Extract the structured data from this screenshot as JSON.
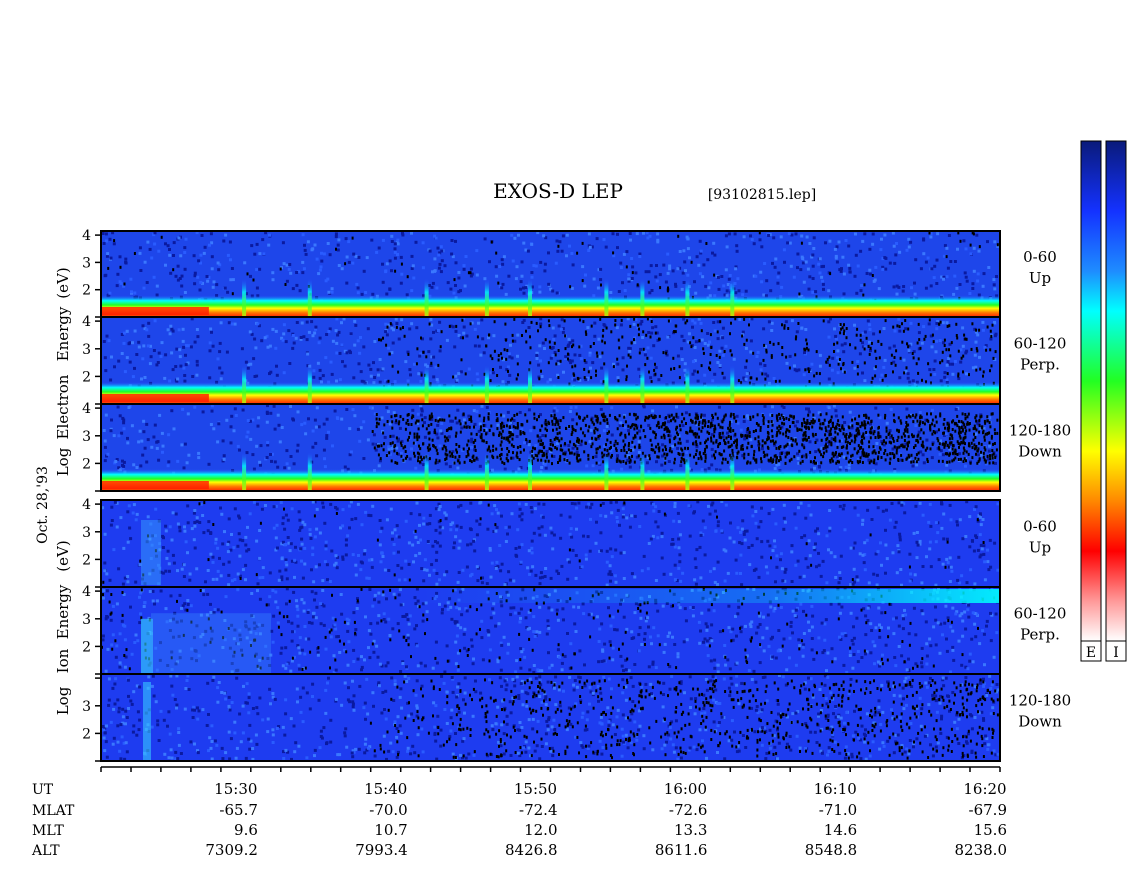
{
  "chart_data": {
    "type": "heatmap",
    "title": "EXOS-D LEP",
    "subtitle": "[93102815.lep]",
    "date_label": "Oct. 28,'93",
    "colorbar_labels": [
      "E",
      "I"
    ],
    "colorbar_stops": [
      "#0a1a8c",
      "#1a3cff",
      "#1e8cff",
      "#00ffff",
      "#33ff33",
      "#ffff00",
      "#ff8800",
      "#ff0000",
      "#ffffff"
    ],
    "time_axis": {
      "label": "UT",
      "ticks": [
        "15:30",
        "15:40",
        "15:50",
        "16:00",
        "16:10",
        "16:20"
      ],
      "range": [
        "15:21",
        "16:21"
      ]
    },
    "ephemeris": [
      {
        "name": "MLAT",
        "values": [
          "-65.7",
          "-70.0",
          "-72.4",
          "-72.6",
          "-71.0",
          "-67.9"
        ]
      },
      {
        "name": "MLT",
        "values": [
          "9.6",
          "10.7",
          "12.0",
          "13.3",
          "14.6",
          "15.6"
        ]
      },
      {
        "name": "ALT",
        "values": [
          "7309.2",
          "7993.4",
          "8426.8",
          "8611.6",
          "8548.8",
          "8238.0"
        ]
      }
    ],
    "groups": [
      {
        "species": "Electron",
        "ylabel_words": [
          "Log",
          "Electron",
          "Energy",
          "(eV)"
        ]
      },
      {
        "species": "Ion",
        "ylabel_words": [
          "Log",
          "Ion",
          "Energy",
          "(eV)"
        ]
      }
    ],
    "panels": [
      {
        "group": "Electron",
        "pitch_angle": "0-60",
        "direction": "Up",
        "y_ticks": [
          "4",
          "3",
          "2"
        ]
      },
      {
        "group": "Electron",
        "pitch_angle": "60-120",
        "direction": "Perp.",
        "y_ticks": [
          "4",
          "3",
          "2"
        ]
      },
      {
        "group": "Electron",
        "pitch_angle": "120-180",
        "direction": "Down",
        "y_ticks": [
          "4",
          "3",
          "2"
        ]
      },
      {
        "group": "Ion",
        "pitch_angle": "0-60",
        "direction": "Up",
        "y_ticks": [
          "4",
          "3",
          "2"
        ]
      },
      {
        "group": "Ion",
        "pitch_angle": "60-120",
        "direction": "Perp.",
        "y_ticks": [
          "4",
          "3",
          "2"
        ]
      },
      {
        "group": "Ion",
        "pitch_angle": "120-180",
        "direction": "Down",
        "y_ticks": [
          "3",
          "2"
        ]
      }
    ],
    "y_axis": {
      "scale": "log",
      "range": [
        1,
        4.15
      ],
      "unit": "eV"
    }
  }
}
